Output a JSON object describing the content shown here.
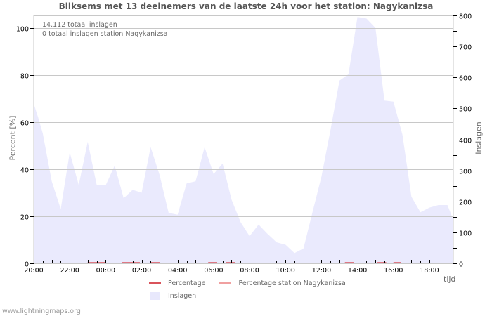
{
  "header": {
    "title": "Bliksems met 13 deelnemers van de laatste 24h voor het station: Nagykanizsa"
  },
  "annotations": {
    "total": "14.112 totaal inslagen",
    "station_total": "0 totaal inslagen station Nagykanizsa"
  },
  "axes": {
    "left_label": "Percent   [%]",
    "right_label": "Inslagen",
    "x_label": "tijd"
  },
  "legend": {
    "items": [
      {
        "label": "Percentage",
        "color": "#d9535b"
      },
      {
        "label": "Percentage station Nagykanizsa",
        "color": "#f0a0a0"
      },
      {
        "label": "Inslagen",
        "color": "#e8e8fc"
      }
    ]
  },
  "footer": {
    "source": "www.lightningmaps.org"
  },
  "colors": {
    "area_fill": "#eaeafd",
    "grid": "#c8c8c8",
    "percentage_line": "#d9535b",
    "axis": "#000000"
  },
  "chart_data": {
    "type": "area",
    "title": "Bliksems met 13 deelnemers van de laatste 24h voor het station: Nagykanizsa",
    "xlabel": "tijd",
    "ylabel_left": "Percent [%]",
    "ylabel_right": "Inslagen",
    "x_ticks": [
      "20:00",
      "22:00",
      "00:00",
      "02:00",
      "04:00",
      "06:00",
      "08:00",
      "10:00",
      "12:00",
      "14:00",
      "16:00",
      "18:00"
    ],
    "y_left_ticks": [
      0,
      20,
      40,
      60,
      80,
      100
    ],
    "y_left_range": [
      0,
      105
    ],
    "y_right_ticks": [
      0,
      100,
      200,
      300,
      400,
      500,
      600,
      700,
      800
    ],
    "y_right_range": [
      0,
      800
    ],
    "grid": true,
    "legend_position": "bottom",
    "series": [
      {
        "name": "Inslagen",
        "axis": "right",
        "x_hours": [
          0,
          0.25,
          0.5,
          1.0,
          1.5,
          2.0,
          2.5,
          3.0,
          3.5,
          4.0,
          4.5,
          5.0,
          5.5,
          6.0,
          6.5,
          7.0,
          7.5,
          8.0,
          8.5,
          9.0,
          9.5,
          10.0,
          10.5,
          11.0,
          11.5,
          12.0,
          12.5,
          13.0,
          13.5,
          14.0,
          14.5,
          15.0,
          15.5,
          16.0,
          16.5,
          17.0,
          17.5,
          18.0,
          18.5,
          19.0,
          19.5,
          20.0,
          20.5,
          21.0,
          21.5,
          22.0,
          22.5,
          23.0,
          23.3
        ],
        "values": [
          515,
          470,
          420,
          265,
          175,
          358,
          253,
          392,
          253,
          252,
          316,
          210,
          237,
          228,
          375,
          285,
          163,
          157,
          258,
          265,
          375,
          288,
          322,
          205,
          133,
          88,
          125,
          95,
          68,
          60,
          33,
          48,
          165,
          280,
          430,
          590,
          610,
          795,
          790,
          760,
          525,
          522,
          415,
          215,
          165,
          180,
          188,
          188,
          145
        ]
      },
      {
        "name": "Percentage",
        "axis": "left",
        "note": "near-zero values (approx. 0-0.5%) with small visible segments around 23:00-00:00, 01:00-02:00, 02:30, 05:30, 06:30, 13:30, 15:00, 16:00",
        "values_pct_approx": 0.3
      },
      {
        "name": "Percentage station Nagykanizsa",
        "axis": "left",
        "values_pct_approx": 0
      }
    ]
  }
}
